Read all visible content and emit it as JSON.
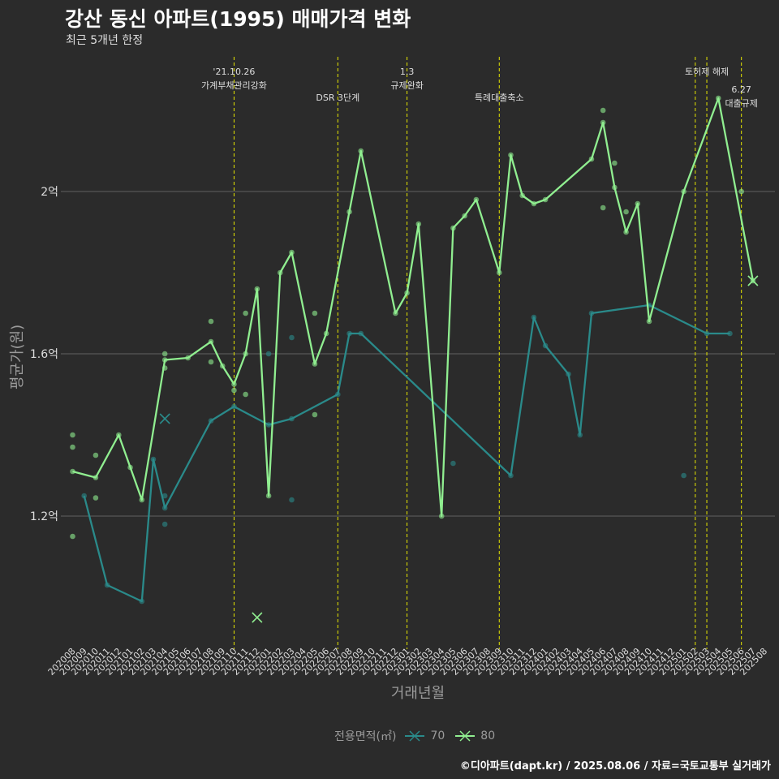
{
  "title": "강산 동신 아파트(1995) 매매가격 변화",
  "subtitle": "최근 5개년 한정",
  "caption": "©디아파트(dapt.kr) / 2025.08.06 / 자료=국토교통부 실거래가",
  "colors": {
    "background": "#2b2b2b",
    "s70": "#2a8a8a",
    "s80": "#90ee90",
    "event": "#e6e600",
    "grid": "#606060",
    "text": "#dddddd",
    "axis": "#9a9a9a"
  },
  "chart_data": {
    "type": "line",
    "title": "강산 동신 아파트(1995) 매매가격 변화",
    "subtitle": "최근 5개년 한정",
    "xlabel": "거래년월",
    "ylabel": "평균가(원)",
    "ylim": [
      0.9,
      2.22
    ],
    "grid": true,
    "legend_position": "bottom",
    "legend_title": "전용면적(㎡)",
    "x": [
      "202008",
      "202009",
      "202010",
      "202011",
      "202012",
      "202101",
      "202102",
      "202103",
      "202104",
      "202105",
      "202106",
      "202107",
      "202108",
      "202109",
      "202110",
      "202111",
      "202112",
      "202201",
      "202202",
      "202203",
      "202204",
      "202205",
      "202206",
      "202207",
      "202208",
      "202209",
      "202210",
      "202211",
      "202212",
      "202301",
      "202302",
      "202303",
      "202304",
      "202305",
      "202306",
      "202307",
      "202308",
      "202309",
      "202310",
      "202311",
      "202312",
      "202401",
      "202402",
      "202403",
      "202404",
      "202405",
      "202406",
      "202407",
      "202408",
      "202409",
      "202410",
      "202411",
      "202412",
      "202501",
      "202502",
      "202503",
      "202504",
      "202505",
      "202506",
      "202507",
      "202508"
    ],
    "yticks": [
      {
        "value": 1.2,
        "label": "1.2억"
      },
      {
        "value": 1.6,
        "label": "1.6억"
      },
      {
        "value": 2.0,
        "label": "2억"
      }
    ],
    "series": [
      {
        "name": "70",
        "color": "#2a8a8a",
        "points": [
          [
            "202009",
            1.25
          ],
          [
            "202011",
            1.03
          ],
          [
            "202102",
            0.99
          ],
          [
            "202103",
            1.34
          ],
          [
            "202104",
            1.22
          ],
          [
            "202108",
            1.435
          ],
          [
            "202110",
            1.47
          ],
          [
            "202201",
            1.425
          ],
          [
            "202203",
            1.44
          ],
          [
            "202207",
            1.5
          ],
          [
            "202208",
            1.65
          ],
          [
            "202209",
            1.65
          ],
          [
            "202310",
            1.3
          ],
          [
            "202312",
            1.69
          ],
          [
            "202401",
            1.62
          ],
          [
            "202403",
            1.55
          ],
          [
            "202404",
            1.4
          ],
          [
            "202405",
            1.7
          ],
          [
            "202410",
            1.72
          ],
          [
            "202503",
            1.65
          ],
          [
            "202505",
            1.65
          ]
        ],
        "scatter": [
          [
            "202104",
            1.25
          ],
          [
            "202104",
            1.18
          ],
          [
            "202201",
            1.6
          ],
          [
            "202203",
            1.64
          ],
          [
            "202203",
            1.24
          ],
          [
            "202305",
            1.33
          ],
          [
            "202501",
            1.3
          ]
        ],
        "cancelled": [
          [
            "202104",
            1.44
          ]
        ]
      },
      {
        "name": "80",
        "color": "#90ee90",
        "points": [
          [
            "202008",
            1.31
          ],
          [
            "202010",
            1.295
          ],
          [
            "202012",
            1.4
          ],
          [
            "202101",
            1.32
          ],
          [
            "202102",
            1.24
          ],
          [
            "202104",
            1.585
          ],
          [
            "202106",
            1.59
          ],
          [
            "202108",
            1.63
          ],
          [
            "202109",
            1.57
          ],
          [
            "202110",
            1.525
          ],
          [
            "202111",
            1.6
          ],
          [
            "202112",
            1.76
          ],
          [
            "202201",
            1.25
          ],
          [
            "202202",
            1.8
          ],
          [
            "202203",
            1.85
          ],
          [
            "202205",
            1.575
          ],
          [
            "202206",
            1.65
          ],
          [
            "202208",
            1.95
          ],
          [
            "202209",
            2.1
          ],
          [
            "202212",
            1.7
          ],
          [
            "202301",
            1.75
          ],
          [
            "202302",
            1.92
          ],
          [
            "202304",
            1.2
          ],
          [
            "202305",
            1.91
          ],
          [
            "202306",
            1.94
          ],
          [
            "202307",
            1.98
          ],
          [
            "202309",
            1.8
          ],
          [
            "202310",
            2.09
          ],
          [
            "202311",
            1.99
          ],
          [
            "202312",
            1.97
          ],
          [
            "202401",
            1.98
          ],
          [
            "202405",
            2.08
          ],
          [
            "202406",
            2.17
          ],
          [
            "202407",
            2.01
          ],
          [
            "202408",
            1.9
          ],
          [
            "202409",
            1.97
          ],
          [
            "202410",
            1.68
          ],
          [
            "202501",
            2.0
          ],
          [
            "202504",
            2.23
          ],
          [
            "202507",
            1.78
          ]
        ],
        "scatter": [
          [
            "202008",
            1.4
          ],
          [
            "202008",
            1.37
          ],
          [
            "202008",
            1.15
          ],
          [
            "202010",
            1.35
          ],
          [
            "202010",
            1.245
          ],
          [
            "202104",
            1.6
          ],
          [
            "202104",
            1.565
          ],
          [
            "202108",
            1.68
          ],
          [
            "202108",
            1.58
          ],
          [
            "202110",
            1.51
          ],
          [
            "202111",
            1.7
          ],
          [
            "202111",
            1.5
          ],
          [
            "202205",
            1.7
          ],
          [
            "202205",
            1.45
          ],
          [
            "202406",
            2.2
          ],
          [
            "202406",
            1.96
          ],
          [
            "202407",
            2.07
          ],
          [
            "202408",
            1.95
          ],
          [
            "202506",
            2.0
          ]
        ],
        "cancelled": [
          [
            "202112",
            0.95
          ],
          [
            "202507",
            1.78
          ]
        ]
      }
    ],
    "events": [
      {
        "x": "202110",
        "labels": [
          "'21.10.26",
          "가계부채관리강화"
        ],
        "tier": 0
      },
      {
        "x": "202207",
        "labels": [
          "DSR 3단계"
        ],
        "tier": 1
      },
      {
        "x": "202301",
        "labels": [
          "1.3",
          "규제완화"
        ],
        "tier": 0
      },
      {
        "x": "202309",
        "labels": [
          "특례대출축소"
        ],
        "tier": 1
      },
      {
        "x": "202502",
        "labels": [],
        "tier": 0
      },
      {
        "x": "202503",
        "labels": [
          "토허제 해제"
        ],
        "tier": 0
      },
      {
        "x": "202506",
        "labels": [
          "6.27",
          "대출규제"
        ],
        "tier": 2
      }
    ]
  }
}
